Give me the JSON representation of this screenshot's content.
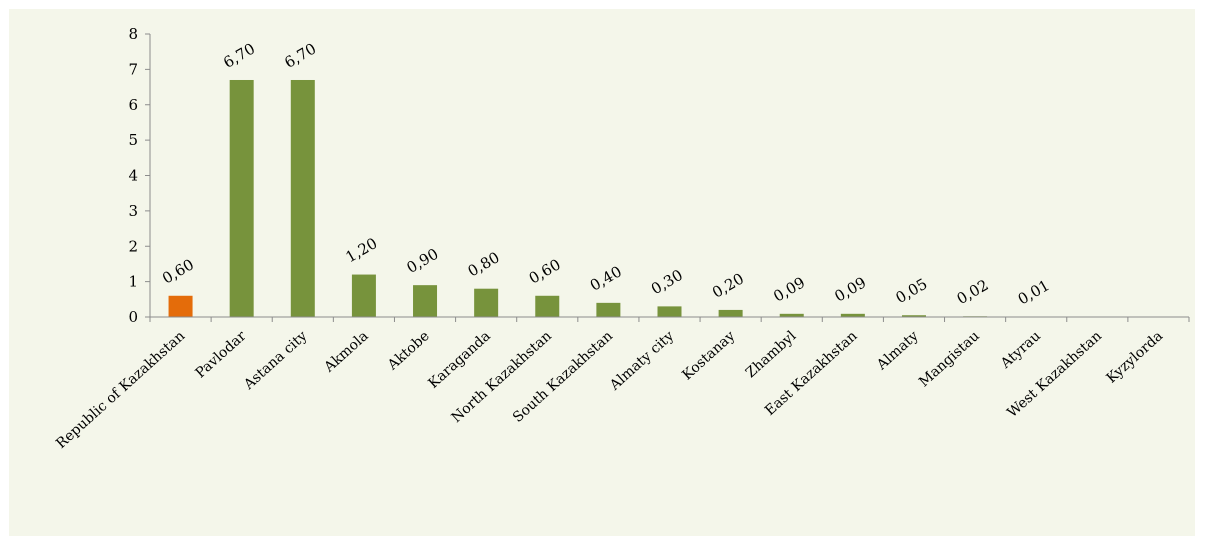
{
  "chart_data": {
    "type": "bar",
    "title": "",
    "xlabel": "",
    "ylabel": "",
    "ylim": [
      0,
      8
    ],
    "yticks": [
      0,
      1,
      2,
      3,
      4,
      5,
      6,
      7,
      8
    ],
    "grid": false,
    "legend": "none",
    "highlight_color": "#e46c0a",
    "bar_color": "#77933c",
    "categories": [
      "Republic of Kazakhstan",
      "Pavlodar",
      "Astana city",
      "Akmola",
      "Aktobe",
      "Karaganda",
      "North Kazakhstan",
      "South Kazakhstan",
      "Almaty city",
      "Kostanay",
      "Zhambyl",
      "East Kazakhstan",
      "Almaty",
      "Mangistau",
      "Atyrau",
      "West Kazakhstan",
      "Kyzylorda"
    ],
    "values": [
      0.6,
      6.7,
      6.7,
      1.2,
      0.9,
      0.8,
      0.6,
      0.4,
      0.3,
      0.2,
      0.09,
      0.09,
      0.05,
      0.02,
      0.01,
      0,
      0
    ],
    "data_labels": [
      "0,60",
      "6,70",
      "6,70",
      "1,20",
      "0,90",
      "0,80",
      "0,60",
      "0,40",
      "0,30",
      "0,20",
      "0,09",
      "0,09",
      "0,05",
      "0,02",
      "0,01",
      "",
      ""
    ],
    "highlighted": [
      true,
      false,
      false,
      false,
      false,
      false,
      false,
      false,
      false,
      false,
      false,
      false,
      false,
      false,
      false,
      false,
      false
    ]
  }
}
